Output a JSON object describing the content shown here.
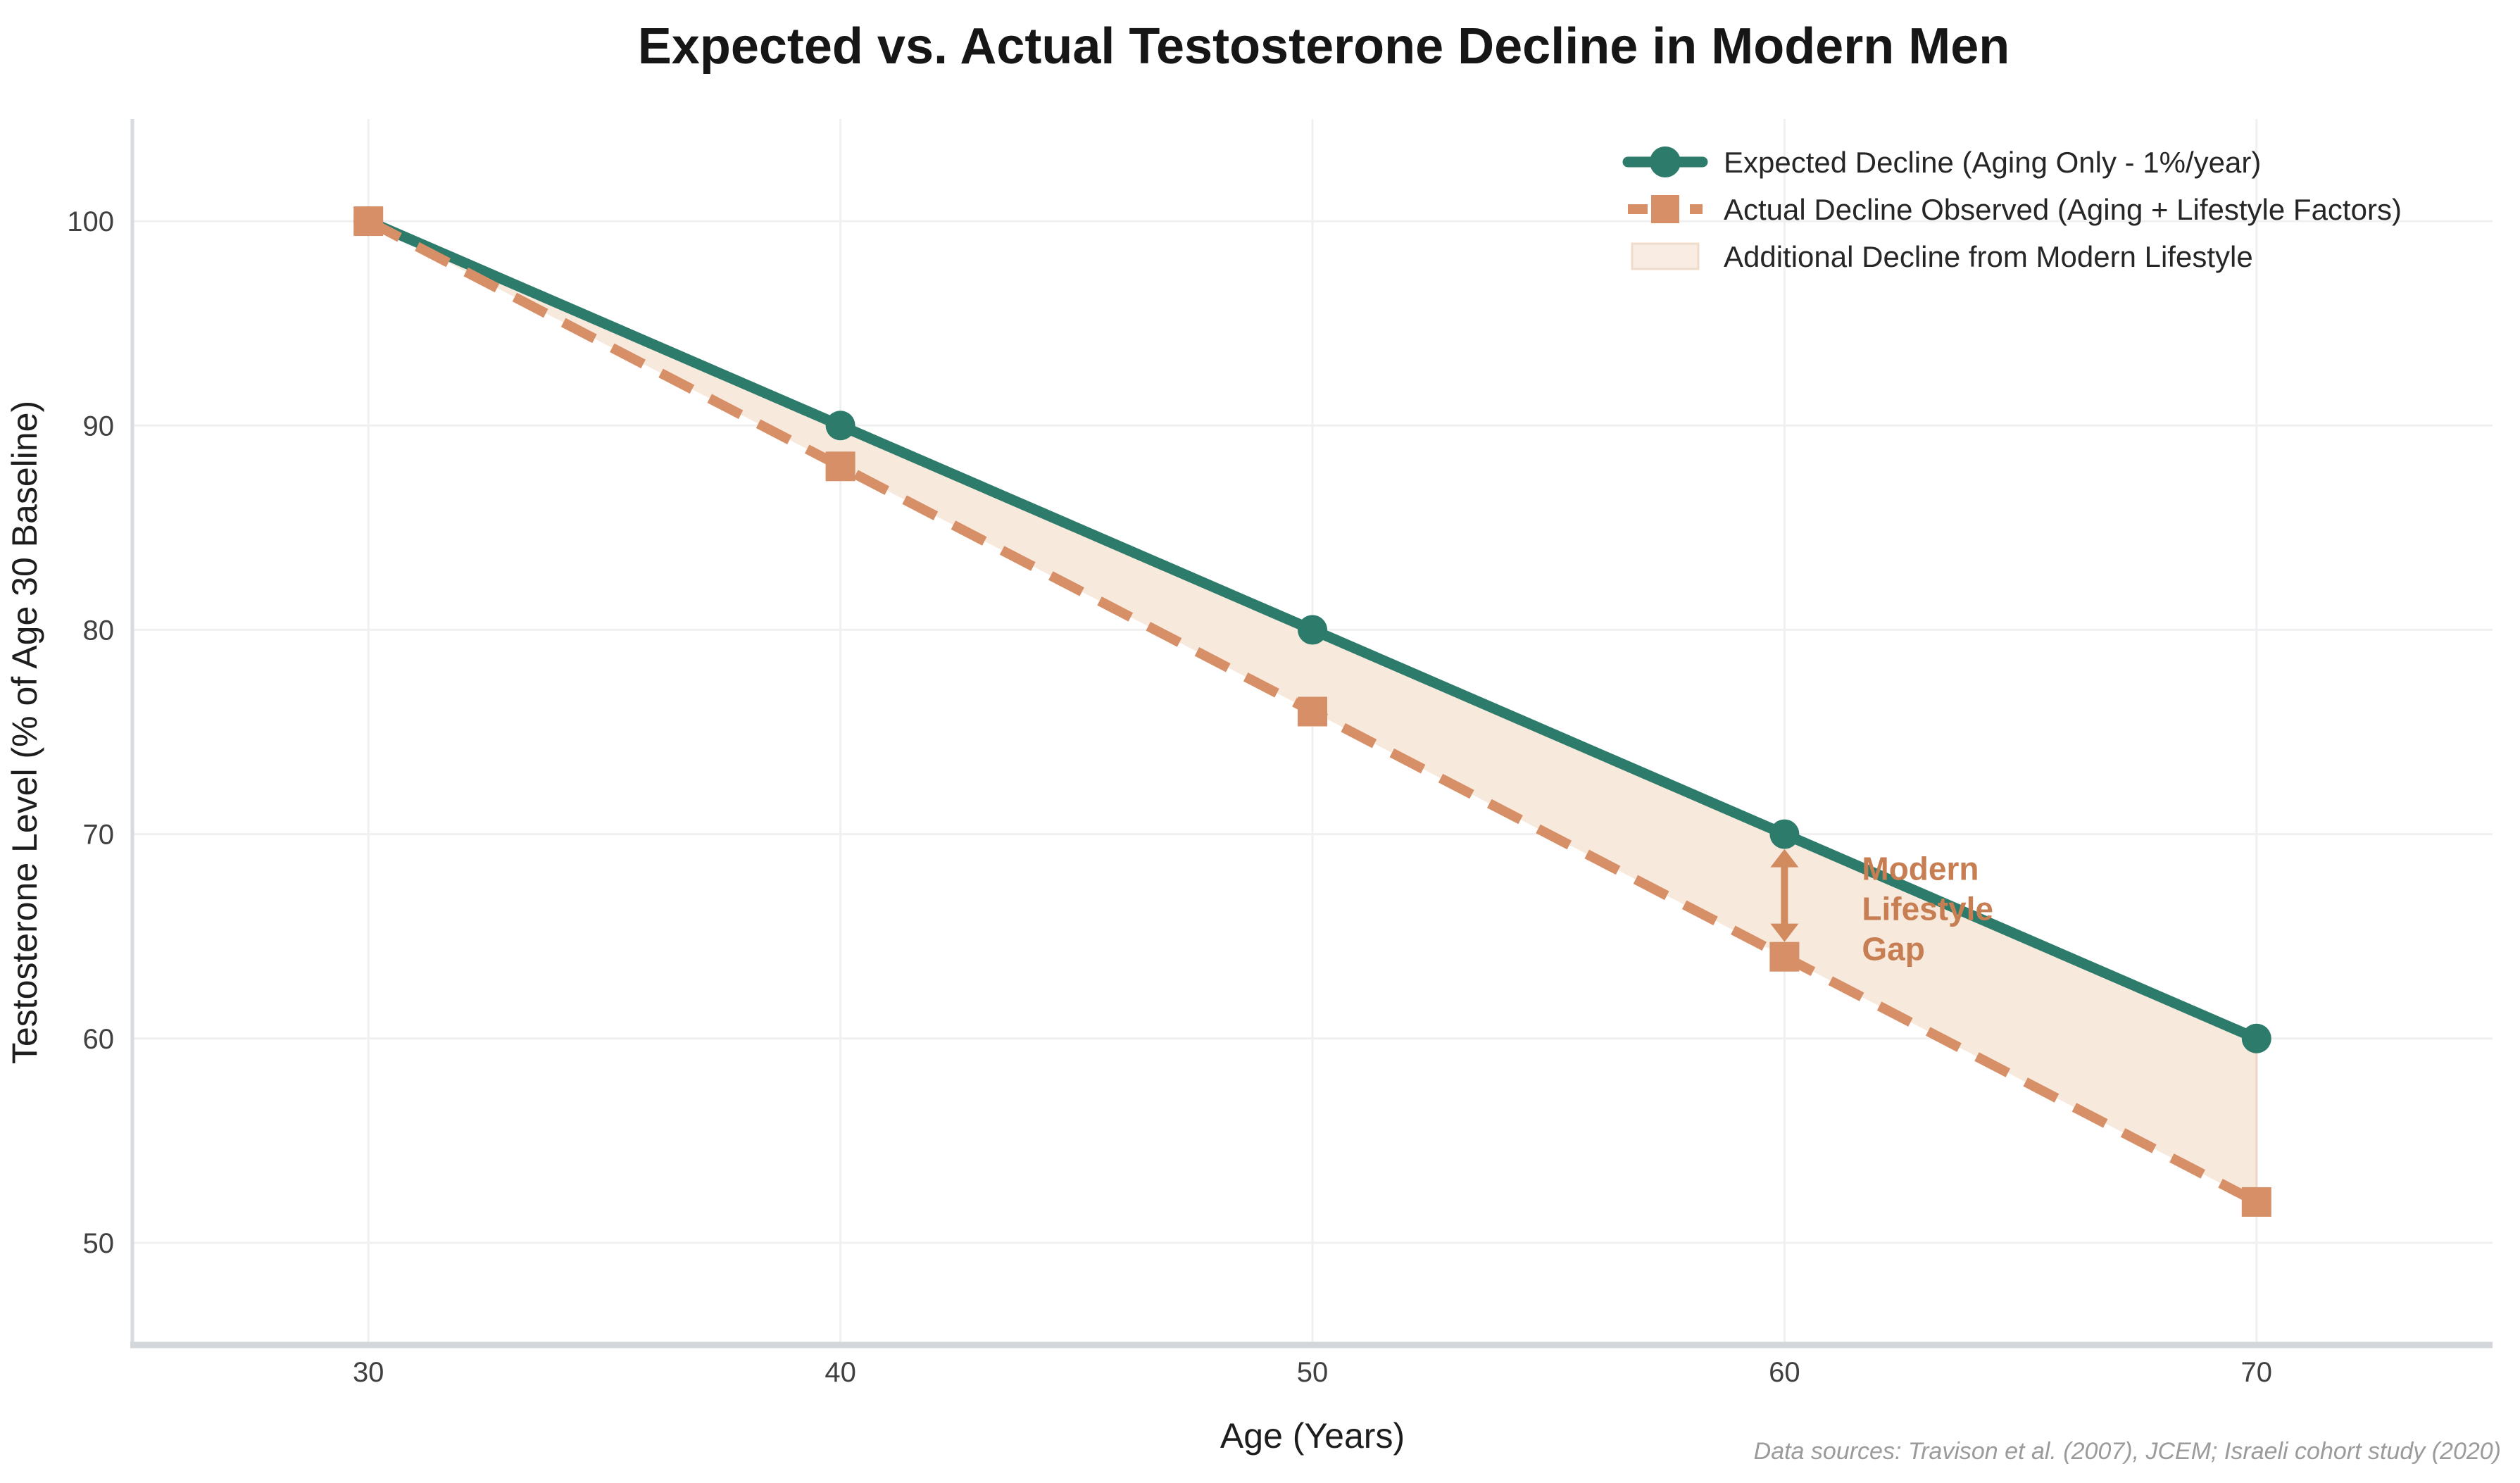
{
  "title": "Expected vs. Actual Testosterone Decline in Modern Men",
  "footer": "Data sources: Travison et al. (2007), JCEM; Israeli cohort study (2020)",
  "axes": {
    "x_label": "Age (Years)",
    "y_label": "Testosterone Level (% of Age 30 Baseline)",
    "x_ticks": [
      "30",
      "40",
      "50",
      "60",
      "70"
    ],
    "y_ticks": [
      "50",
      "60",
      "70",
      "80",
      "90",
      "100"
    ]
  },
  "legend": {
    "items": [
      {
        "label": "Expected Decline (Aging Only - 1%/year)",
        "type": "line-circle",
        "color": "#2d7c6b"
      },
      {
        "label": "Actual Decline Observed (Aging + Lifestyle Factors)",
        "type": "dash-square",
        "color": "#d68f66"
      },
      {
        "label": "Additional Decline from Modern Lifestyle",
        "type": "patch",
        "color": "#f9ece3",
        "border": "#f0dccb"
      }
    ]
  },
  "annotation": {
    "text_lines": [
      "Modern",
      "Lifestyle",
      "Gap"
    ],
    "text_color": "#c77e52",
    "arrow_color": "#d28a5f",
    "arrow_at_x": 60
  },
  "colors": {
    "expected_line": "#2d7c6b",
    "actual_line": "#d68f66",
    "fill_between": "#f8e9dd",
    "fill_edge": "#eed6c5",
    "grid": "#f0f0f2",
    "spine_left": "#d7dade",
    "spine_bottom": "#d3d7db",
    "background": "#ffffff"
  },
  "chart_data": {
    "type": "line",
    "x": [
      30,
      40,
      50,
      60,
      70
    ],
    "series": [
      {
        "name": "Expected Decline (Aging Only - 1%/year)",
        "values": [
          100,
          90,
          80,
          70,
          60
        ],
        "color": "#2d7c6b",
        "style": "solid",
        "marker": "circle"
      },
      {
        "name": "Actual Decline Observed (Aging + Lifestyle Factors)",
        "values": [
          100,
          88,
          76,
          64,
          52
        ],
        "color": "#d68f66",
        "style": "dashed",
        "marker": "square"
      }
    ],
    "fill_between_label": "Additional Decline from Modern Lifestyle",
    "title": "Expected vs. Actual Testosterone Decline in Modern Men",
    "xlabel": "Age (Years)",
    "ylabel": "Testosterone Level (% of Age 30 Baseline)",
    "xlim": [
      25,
      75
    ],
    "ylim": [
      45,
      105
    ],
    "grid": true,
    "legend_position": "upper right"
  }
}
